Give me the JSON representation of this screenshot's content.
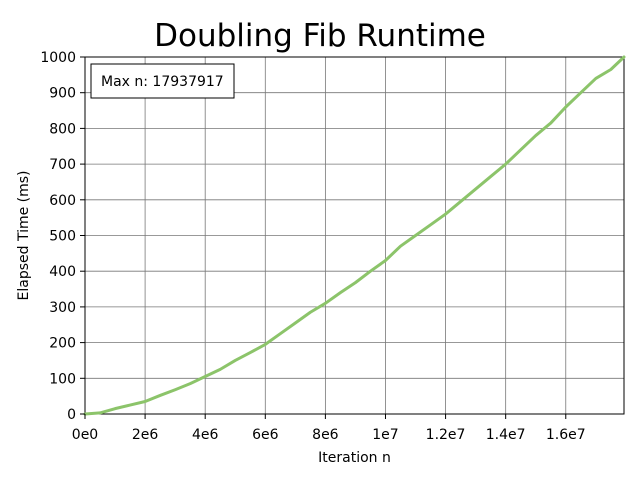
{
  "chart_data": {
    "type": "line",
    "title": "Doubling Fib Runtime",
    "xlabel": "Iteration n",
    "ylabel": "Elapsed Time (ms)",
    "xlim": [
      0,
      17937917
    ],
    "ylim": [
      0,
      1000
    ],
    "grid": true,
    "annotation": "Max n: 17937917",
    "x_ticks": [
      0,
      2000000,
      4000000,
      6000000,
      8000000,
      10000000,
      12000000,
      14000000,
      16000000
    ],
    "x_tick_labels": [
      "0e0",
      "2e6",
      "4e6",
      "6e6",
      "8e6",
      "1e7",
      "1.2e7",
      "1.4e7",
      "1.6e7"
    ],
    "y_ticks": [
      0,
      100,
      200,
      300,
      400,
      500,
      600,
      700,
      800,
      900,
      1000
    ],
    "y_tick_labels": [
      "0",
      "100",
      "200",
      "300",
      "400",
      "500",
      "600",
      "700",
      "800",
      "900",
      "1000"
    ],
    "series": [
      {
        "color": "#8cc46a",
        "x": [
          0,
          500000,
          1000000,
          1500000,
          2000000,
          2500000,
          3000000,
          3500000,
          4000000,
          4500000,
          5000000,
          5500000,
          6000000,
          6500000,
          7000000,
          7500000,
          8000000,
          8500000,
          9000000,
          9500000,
          10000000,
          10500000,
          11000000,
          11500000,
          12000000,
          12500000,
          13000000,
          13500000,
          14000000,
          14500000,
          15000000,
          15500000,
          16000000,
          16500000,
          17000000,
          17500000,
          17937917
        ],
        "y": [
          0,
          3,
          15,
          25,
          35,
          52,
          68,
          85,
          105,
          125,
          150,
          172,
          195,
          225,
          255,
          285,
          310,
          340,
          368,
          400,
          430,
          470,
          500,
          530,
          560,
          595,
          630,
          665,
          700,
          740,
          780,
          815,
          860,
          900,
          940,
          965,
          1000
        ]
      }
    ]
  }
}
